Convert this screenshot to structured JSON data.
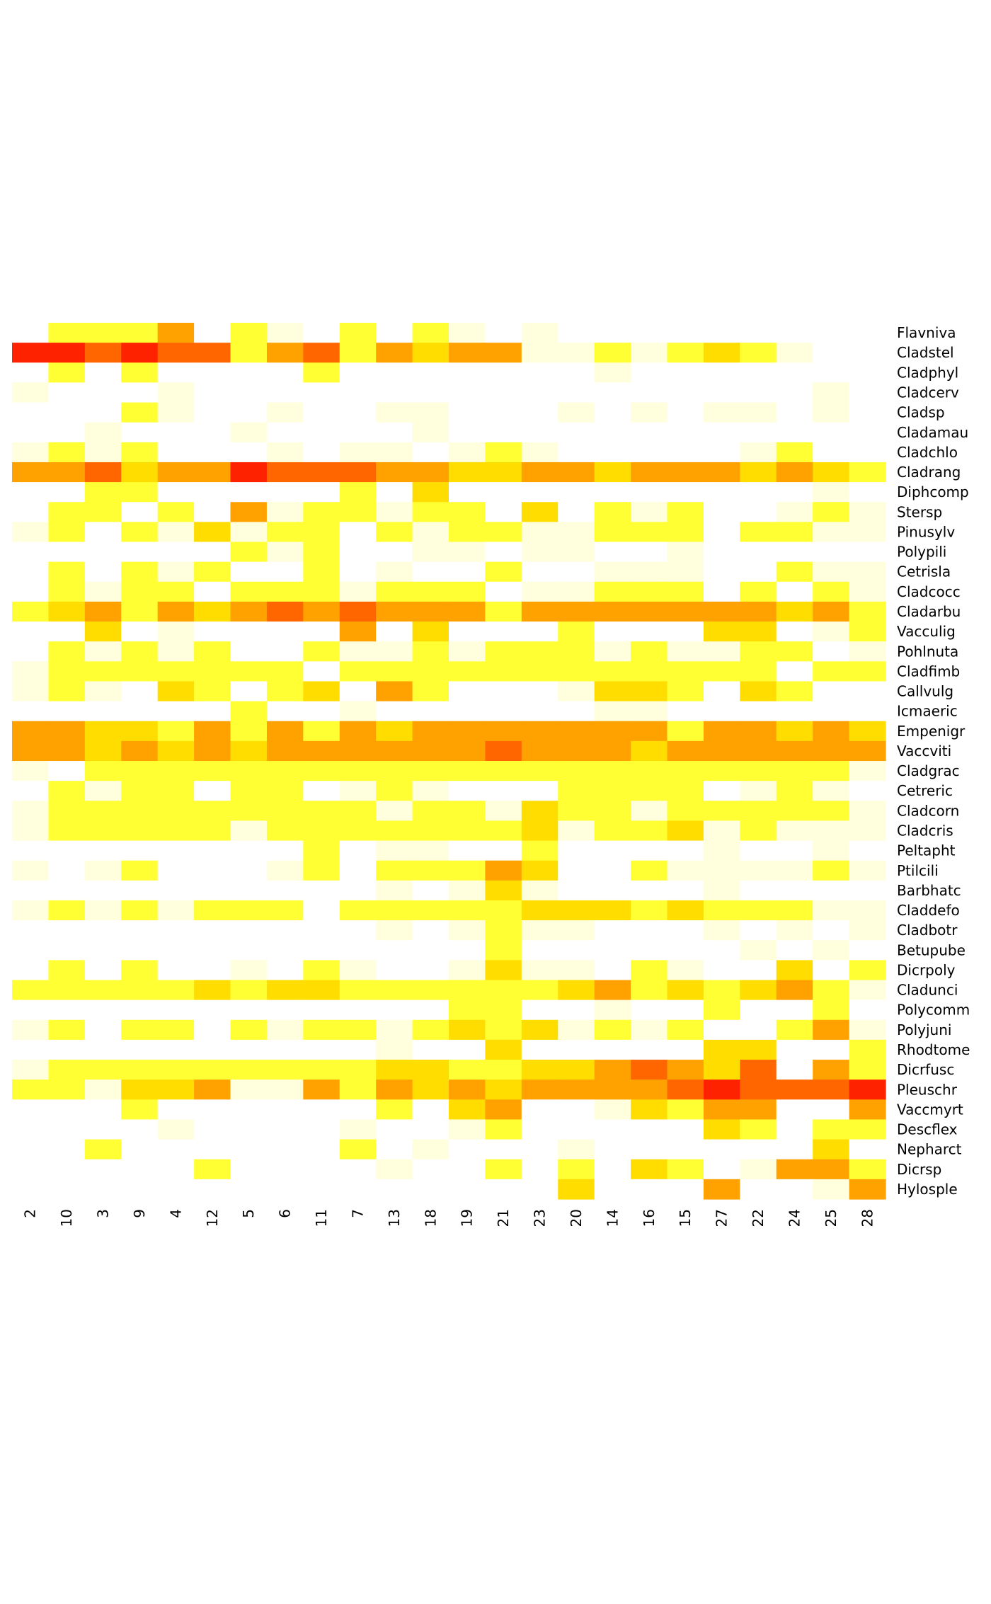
{
  "chart_data": {
    "type": "heatmap",
    "title": "",
    "xlabel": "",
    "ylabel": "",
    "x_categories": [
      "2",
      "10",
      "3",
      "9",
      "4",
      "12",
      "5",
      "6",
      "11",
      "7",
      "13",
      "18",
      "19",
      "21",
      "23",
      "20",
      "14",
      "16",
      "15",
      "27",
      "22",
      "24",
      "25",
      "28"
    ],
    "y_categories": [
      "Flavniva",
      "Cladstel",
      "Cladphyl",
      "Cladcerv",
      "Cladsp",
      "Cladamau",
      "Cladchlo",
      "Cladrang",
      "Diphcomp",
      "Stersp",
      "Pinusylv",
      "Polypili",
      "Cetrisla",
      "Cladcocc",
      "Cladarbu",
      "Vacculig",
      "Pohlnuta",
      "Cladfimb",
      "Callvulg",
      "Icmaeric",
      "Empenigr",
      "Vaccviti",
      "Cladgrac",
      "Cetreric",
      "Cladcorn",
      "Cladcris",
      "Peltapht",
      "Ptilcili",
      "Barbhatc",
      "Claddefo",
      "Cladbotr",
      "Betupube",
      "Dicrpoly",
      "Cladunci",
      "Polycomm",
      "Polyjuni",
      "Rhodtome",
      "Dicrfusc",
      "Pleuschr",
      "Vaccmyrt",
      "Descflex",
      "Nepharct",
      "Dicrsp",
      "Hylosple"
    ],
    "value_scale": {
      "description": "0 = absent (white), 1 = faint, 2 = low, 3 = moderate, 4 = high, 5 = very high, 6 = highest",
      "colors": [
        "#ffffff",
        "#ffffdd",
        "#ffff33",
        "#ffdd00",
        "#ffa200",
        "#ff6600",
        "#ff2200"
      ]
    },
    "matrix": [
      [
        0,
        2,
        2,
        2,
        4,
        0,
        2,
        1,
        0,
        2,
        0,
        2,
        1,
        0,
        1,
        0,
        0,
        0,
        0,
        0,
        0,
        0,
        0,
        0
      ],
      [
        6,
        6,
        5,
        6,
        5,
        5,
        2,
        4,
        5,
        2,
        4,
        3,
        4,
        4,
        1,
        1,
        2,
        1,
        2,
        3,
        2,
        1,
        0,
        0
      ],
      [
        0,
        2,
        0,
        2,
        0,
        0,
        0,
        0,
        2,
        0,
        0,
        0,
        0,
        0,
        0,
        0,
        1,
        0,
        0,
        0,
        0,
        0,
        0,
        0
      ],
      [
        1,
        0,
        0,
        0,
        1,
        0,
        0,
        0,
        0,
        0,
        0,
        0,
        0,
        0,
        0,
        0,
        0,
        0,
        0,
        0,
        0,
        0,
        1,
        0
      ],
      [
        0,
        0,
        0,
        2,
        1,
        0,
        0,
        1,
        0,
        0,
        1,
        1,
        0,
        0,
        0,
        1,
        0,
        1,
        0,
        1,
        1,
        0,
        1,
        0
      ],
      [
        0,
        0,
        1,
        0,
        0,
        0,
        1,
        0,
        0,
        0,
        0,
        1,
        0,
        0,
        0,
        0,
        0,
        0,
        0,
        0,
        0,
        0,
        0,
        0
      ],
      [
        1,
        2,
        1,
        2,
        0,
        0,
        0,
        1,
        0,
        1,
        1,
        0,
        1,
        2,
        1,
        0,
        0,
        0,
        0,
        0,
        1,
        2,
        0,
        0
      ],
      [
        4,
        4,
        5,
        3,
        4,
        4,
        6,
        5,
        5,
        5,
        4,
        4,
        3,
        3,
        4,
        4,
        3,
        4,
        4,
        4,
        3,
        4,
        3,
        2
      ],
      [
        0,
        0,
        2,
        2,
        0,
        0,
        0,
        0,
        0,
        2,
        0,
        3,
        0,
        0,
        0,
        0,
        0,
        0,
        0,
        0,
        0,
        0,
        1,
        0
      ],
      [
        0,
        2,
        2,
        0,
        2,
        0,
        4,
        1,
        2,
        2,
        1,
        2,
        2,
        0,
        3,
        0,
        2,
        1,
        2,
        0,
        0,
        1,
        2,
        1
      ],
      [
        1,
        2,
        0,
        2,
        1,
        3,
        1,
        2,
        2,
        0,
        2,
        1,
        2,
        2,
        1,
        1,
        2,
        2,
        2,
        0,
        2,
        2,
        1,
        1
      ],
      [
        0,
        0,
        0,
        0,
        0,
        0,
        2,
        1,
        2,
        0,
        0,
        1,
        1,
        0,
        1,
        1,
        0,
        0,
        1,
        0,
        0,
        0,
        0,
        0
      ],
      [
        0,
        2,
        0,
        2,
        1,
        2,
        0,
        0,
        2,
        0,
        1,
        0,
        0,
        2,
        0,
        0,
        1,
        1,
        1,
        0,
        0,
        2,
        1,
        1
      ],
      [
        0,
        2,
        1,
        2,
        2,
        0,
        2,
        2,
        2,
        1,
        2,
        2,
        2,
        0,
        1,
        1,
        2,
        2,
        2,
        0,
        2,
        0,
        2,
        1
      ],
      [
        2,
        3,
        4,
        2,
        4,
        3,
        4,
        5,
        4,
        5,
        4,
        4,
        4,
        2,
        4,
        4,
        4,
        4,
        4,
        4,
        4,
        3,
        4,
        2
      ],
      [
        0,
        0,
        3,
        0,
        1,
        0,
        0,
        0,
        0,
        4,
        0,
        3,
        0,
        0,
        0,
        2,
        0,
        0,
        0,
        3,
        3,
        0,
        1,
        2
      ],
      [
        0,
        2,
        1,
        2,
        1,
        2,
        0,
        0,
        2,
        1,
        1,
        2,
        1,
        2,
        2,
        2,
        1,
        2,
        1,
        1,
        2,
        2,
        0,
        1
      ],
      [
        1,
        2,
        2,
        2,
        2,
        2,
        2,
        2,
        0,
        2,
        2,
        2,
        2,
        2,
        2,
        2,
        2,
        2,
        2,
        2,
        2,
        0,
        2,
        2
      ],
      [
        1,
        2,
        1,
        0,
        3,
        2,
        0,
        2,
        3,
        0,
        4,
        2,
        0,
        0,
        0,
        1,
        3,
        3,
        2,
        0,
        3,
        2,
        0,
        0
      ],
      [
        0,
        0,
        0,
        0,
        0,
        0,
        2,
        0,
        0,
        1,
        0,
        0,
        0,
        0,
        0,
        0,
        1,
        1,
        0,
        0,
        0,
        0,
        0,
        0
      ],
      [
        4,
        4,
        3,
        3,
        2,
        4,
        2,
        4,
        2,
        4,
        3,
        4,
        4,
        4,
        4,
        4,
        4,
        4,
        2,
        4,
        4,
        3,
        4,
        3
      ],
      [
        4,
        4,
        3,
        4,
        3,
        4,
        3,
        4,
        4,
        4,
        4,
        4,
        4,
        5,
        4,
        4,
        4,
        3,
        4,
        4,
        4,
        4,
        4,
        4
      ],
      [
        1,
        0,
        2,
        2,
        2,
        2,
        2,
        2,
        2,
        2,
        2,
        2,
        2,
        2,
        2,
        2,
        2,
        2,
        2,
        2,
        2,
        2,
        2,
        1
      ],
      [
        0,
        2,
        1,
        2,
        2,
        0,
        2,
        2,
        0,
        1,
        2,
        1,
        0,
        0,
        0,
        2,
        2,
        2,
        2,
        0,
        1,
        2,
        1,
        0
      ],
      [
        1,
        2,
        2,
        2,
        2,
        2,
        2,
        2,
        2,
        2,
        1,
        2,
        2,
        1,
        3,
        2,
        2,
        1,
        2,
        2,
        2,
        2,
        2,
        1
      ],
      [
        1,
        2,
        2,
        2,
        2,
        2,
        1,
        2,
        2,
        2,
        2,
        2,
        2,
        2,
        3,
        1,
        2,
        2,
        3,
        1,
        2,
        1,
        1,
        1
      ],
      [
        0,
        0,
        0,
        0,
        0,
        0,
        0,
        0,
        2,
        0,
        1,
        1,
        0,
        0,
        2,
        0,
        0,
        0,
        0,
        1,
        0,
        0,
        1,
        0
      ],
      [
        1,
        0,
        1,
        2,
        0,
        0,
        0,
        1,
        2,
        0,
        2,
        2,
        2,
        4,
        3,
        0,
        0,
        2,
        1,
        1,
        1,
        1,
        2,
        1
      ],
      [
        0,
        0,
        0,
        0,
        0,
        0,
        0,
        0,
        0,
        0,
        1,
        0,
        1,
        3,
        1,
        0,
        0,
        0,
        0,
        1,
        0,
        0,
        0,
        0
      ],
      [
        1,
        2,
        1,
        2,
        1,
        2,
        2,
        2,
        0,
        2,
        2,
        2,
        2,
        2,
        3,
        3,
        3,
        2,
        3,
        2,
        2,
        2,
        1,
        1
      ],
      [
        0,
        0,
        0,
        0,
        0,
        0,
        0,
        0,
        0,
        0,
        1,
        0,
        1,
        2,
        1,
        1,
        0,
        0,
        0,
        1,
        0,
        1,
        0,
        1
      ],
      [
        0,
        0,
        0,
        0,
        0,
        0,
        0,
        0,
        0,
        0,
        0,
        0,
        0,
        2,
        0,
        0,
        0,
        0,
        0,
        0,
        1,
        0,
        1,
        0
      ],
      [
        0,
        2,
        0,
        2,
        0,
        0,
        1,
        0,
        2,
        1,
        0,
        0,
        1,
        3,
        1,
        1,
        0,
        2,
        1,
        0,
        0,
        3,
        0,
        2
      ],
      [
        2,
        2,
        2,
        2,
        2,
        3,
        2,
        3,
        3,
        2,
        2,
        2,
        2,
        2,
        2,
        3,
        4,
        2,
        3,
        2,
        3,
        4,
        2,
        1
      ],
      [
        0,
        0,
        0,
        0,
        0,
        0,
        0,
        0,
        0,
        0,
        0,
        0,
        2,
        2,
        0,
        0,
        1,
        0,
        0,
        2,
        0,
        0,
        2,
        0
      ],
      [
        1,
        2,
        0,
        2,
        2,
        0,
        2,
        1,
        2,
        2,
        1,
        2,
        3,
        2,
        3,
        1,
        2,
        1,
        2,
        0,
        0,
        2,
        4,
        1
      ],
      [
        0,
        0,
        0,
        0,
        0,
        0,
        0,
        0,
        0,
        0,
        1,
        0,
        0,
        3,
        0,
        0,
        0,
        0,
        0,
        3,
        3,
        0,
        0,
        2
      ],
      [
        1,
        2,
        2,
        2,
        2,
        2,
        2,
        2,
        2,
        2,
        3,
        3,
        2,
        2,
        3,
        3,
        4,
        5,
        4,
        3,
        5,
        0,
        4,
        2
      ],
      [
        2,
        2,
        1,
        3,
        3,
        4,
        1,
        1,
        4,
        2,
        4,
        3,
        4,
        3,
        4,
        4,
        4,
        4,
        5,
        6,
        5,
        5,
        5,
        6
      ],
      [
        0,
        0,
        0,
        2,
        0,
        0,
        0,
        0,
        0,
        0,
        2,
        0,
        3,
        4,
        0,
        0,
        1,
        3,
        2,
        4,
        4,
        0,
        0,
        4
      ],
      [
        0,
        0,
        0,
        0,
        1,
        0,
        0,
        0,
        0,
        1,
        0,
        0,
        1,
        2,
        0,
        0,
        0,
        0,
        0,
        3,
        2,
        0,
        2,
        2
      ],
      [
        0,
        0,
        2,
        0,
        0,
        0,
        0,
        0,
        0,
        2,
        0,
        1,
        0,
        0,
        0,
        1,
        0,
        0,
        0,
        0,
        0,
        0,
        3,
        0
      ],
      [
        0,
        0,
        0,
        0,
        0,
        2,
        0,
        0,
        0,
        0,
        1,
        0,
        0,
        2,
        0,
        2,
        0,
        3,
        2,
        0,
        1,
        4,
        4,
        2
      ],
      [
        0,
        0,
        0,
        0,
        0,
        0,
        0,
        0,
        0,
        0,
        0,
        0,
        0,
        0,
        0,
        3,
        0,
        0,
        0,
        4,
        0,
        0,
        1,
        4
      ]
    ]
  }
}
